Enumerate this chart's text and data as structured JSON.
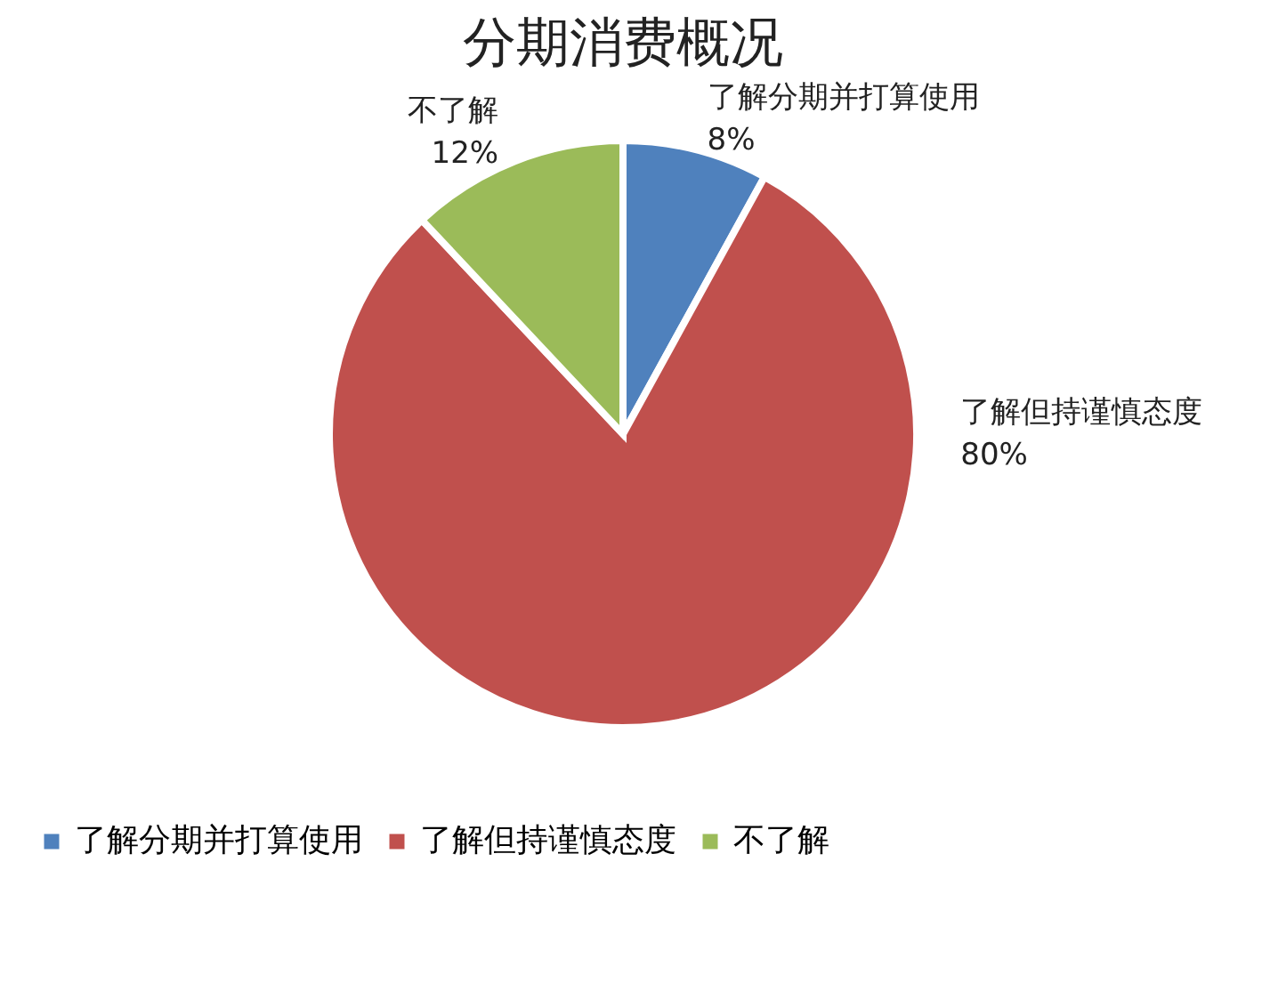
{
  "chart_data": {
    "type": "pie",
    "title": "分期消费概况",
    "categories": [
      "了解分期并打算使用",
      "了解但持谨慎态度",
      "不了解"
    ],
    "values": [
      8,
      80,
      12
    ],
    "value_labels": [
      "8%",
      "80%",
      "12%"
    ],
    "colors": [
      "#4f81bd",
      "#c0504d",
      "#9bbb59"
    ],
    "legend": "bottom"
  }
}
